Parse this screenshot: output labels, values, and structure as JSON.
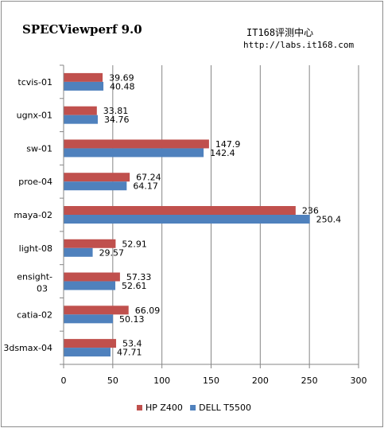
{
  "header": {
    "title": "SPECViewperf 9.0",
    "site_name": "IT168评测中心",
    "site_url": "http://labs.it168.com"
  },
  "chart_data": {
    "type": "bar",
    "orientation": "horizontal",
    "title": "SPECViewperf 9.0",
    "categories": [
      "tcvis-01",
      "ugnx-01",
      "sw-01",
      "proe-04",
      "maya-02",
      "light-08",
      "ensight-03",
      "catia-02",
      "3dsmax-04"
    ],
    "series": [
      {
        "name": "HP Z400",
        "color": "#c0504d",
        "values": [
          39.69,
          33.81,
          147.9,
          67.24,
          236,
          52.91,
          57.33,
          66.09,
          53.4
        ]
      },
      {
        "name": "DELL T5500",
        "color": "#4f81bd",
        "values": [
          40.48,
          34.76,
          142.4,
          64.17,
          250.4,
          29.57,
          52.61,
          50.13,
          47.71
        ]
      }
    ],
    "xlim": [
      0,
      300
    ],
    "xticks": [
      0,
      50,
      100,
      150,
      200,
      250,
      300
    ],
    "grid": true,
    "legend": "bottom"
  }
}
